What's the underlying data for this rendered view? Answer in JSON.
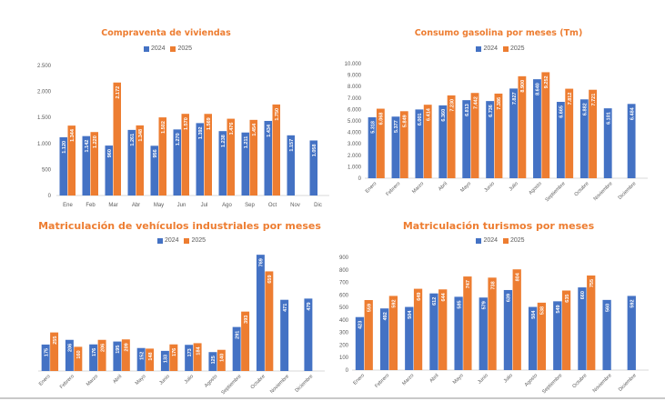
{
  "colors": {
    "series_2024": "#4472C4",
    "series_2025": "#ED7D31",
    "title": "#ED7D31",
    "axis_text": "#595959"
  },
  "chart_data": [
    {
      "id": "viviendas",
      "type": "bar",
      "title": "Compraventa de viviendas",
      "categories": [
        "Ene",
        "Feb",
        "Mar",
        "Abr",
        "May",
        "Jun",
        "Jul",
        "Ago",
        "Sep",
        "Oct",
        "Nov",
        "Dic"
      ],
      "series": [
        {
          "name": "2024",
          "values": [
            1120,
            1142,
            960,
            1261,
            956,
            1270,
            1392,
            1238,
            1211,
            1434,
            1157,
            1058
          ],
          "labels": [
            "1.120",
            "1.142",
            "960",
            "1.261",
            "956",
            "1.270",
            "1.392",
            "1.238",
            "1.211",
            "1.434",
            "1.157",
            "1.058"
          ]
        },
        {
          "name": "2025",
          "values": [
            1344,
            1220,
            2172,
            1348,
            1502,
            1570,
            1569,
            1476,
            1454,
            1750,
            null,
            null
          ],
          "labels": [
            "1.344",
            "1.220",
            "2.172",
            "1.348",
            "1.502",
            "1.570",
            "1.569",
            "1.476",
            "1.454",
            "1.750",
            "",
            ""
          ]
        }
      ],
      "ylim": [
        0,
        2500
      ],
      "yticks": [
        0,
        500,
        1000,
        1500,
        2000,
        2500
      ],
      "ytick_labels": [
        "0",
        "500",
        "1.000",
        "1.500",
        "2.000",
        "2.500"
      ],
      "xlabel": "",
      "ylabel": "",
      "legend": "top",
      "rotated_xlabels": false,
      "show_yaxis": true
    },
    {
      "id": "gasolina",
      "type": "bar",
      "title": "Consumo gasolina por meses (Tm)",
      "categories": [
        "Enero",
        "Febrero",
        "Marzo",
        "Abril",
        "Mayo",
        "Junio",
        "Julio",
        "Agosto",
        "Septiembre",
        "Octubre",
        "Noviembre",
        "Diciembre"
      ],
      "series": [
        {
          "name": "2024",
          "values": [
            5318,
            5377,
            6001,
            6360,
            6813,
            6736,
            7827,
            8640,
            6665,
            6882,
            6101,
            6484
          ],
          "labels": [
            "5.318",
            "5.377",
            "6.001",
            "6.360",
            "6.813",
            "6.736",
            "7.827",
            "8.640",
            "6.665",
            "6.882",
            "6.101",
            "6.484"
          ]
        },
        {
          "name": "2025",
          "values": [
            6068,
            5849,
            6414,
            7230,
            7442,
            7386,
            8900,
            9252,
            7812,
            7721,
            null,
            null
          ],
          "labels": [
            "6.068",
            "5.849",
            "6.414",
            "7.230",
            "7.442",
            "7.386",
            "8.900",
            "9.252",
            "7.812",
            "7.721",
            "",
            ""
          ]
        }
      ],
      "ylim": [
        0,
        10000
      ],
      "yticks": [
        0,
        1000,
        2000,
        3000,
        4000,
        5000,
        6000,
        7000,
        8000,
        9000,
        10000
      ],
      "ytick_labels": [
        "0",
        "1.000",
        "2.000",
        "3.000",
        "4.000",
        "5.000",
        "6.000",
        "7.000",
        "8.000",
        "9.000",
        "10.000"
      ],
      "xlabel": "",
      "ylabel": "",
      "legend": "top",
      "rotated_xlabels": true,
      "show_yaxis": true
    },
    {
      "id": "industriales",
      "type": "bar",
      "title": "Matriculación de vehículos industriales por meses",
      "categories": [
        "Enero",
        "Febrero",
        "Marzo",
        "Abril",
        "Mayo",
        "Junio",
        "Julio",
        "Agosto",
        "Septiembre",
        "Octubre",
        "Noviembre",
        "Diciembre"
      ],
      "series": [
        {
          "name": "2024",
          "values": [
            175,
            206,
            176,
            195,
            152,
            133,
            173,
            125,
            291,
            769,
            471,
            479
          ],
          "labels": [
            "175",
            "206",
            "176",
            "195",
            "152",
            "133",
            "173",
            "125",
            "291",
            "769",
            "471",
            "479"
          ]
        },
        {
          "name": "2025",
          "values": [
            255,
            160,
            206,
            209,
            148,
            176,
            184,
            140,
            393,
            659,
            null,
            null
          ],
          "labels": [
            "255",
            "160",
            "206",
            "209",
            "148",
            "176",
            "184",
            "140",
            "393",
            "659",
            "",
            ""
          ]
        }
      ],
      "ylim": [
        0,
        800
      ],
      "yticks": [],
      "ytick_labels": [],
      "xlabel": "",
      "ylabel": "",
      "legend": "top",
      "rotated_xlabels": true,
      "show_yaxis": false
    },
    {
      "id": "turismos",
      "type": "bar",
      "title": "Matriculación turismos por meses",
      "categories": [
        "Enero",
        "Febrero",
        "Marzo",
        "Abril",
        "Mayo",
        "Junio",
        "Julio",
        "Agosto",
        "Septiembre",
        "Octubre",
        "Noviembre",
        "Diciembre"
      ],
      "series": [
        {
          "name": "2024",
          "values": [
            423,
            492,
            504,
            612,
            585,
            579,
            639,
            504,
            549,
            660,
            560,
            592
          ],
          "labels": [
            "423",
            "492",
            "504",
            "612",
            "585",
            "579",
            "639",
            "504",
            "549",
            "660",
            "560",
            "592"
          ]
        },
        {
          "name": "2025",
          "values": [
            559,
            592,
            649,
            644,
            747,
            738,
            804,
            538,
            635,
            755,
            null,
            null
          ],
          "labels": [
            "559",
            "592",
            "649",
            "644",
            "747",
            "738",
            "804",
            "538",
            "635",
            "755",
            "",
            ""
          ]
        }
      ],
      "ylim": [
        0,
        900
      ],
      "yticks": [
        0,
        100,
        200,
        300,
        400,
        500,
        600,
        700,
        800,
        900
      ],
      "ytick_labels": [
        "0",
        "100",
        "200",
        "300",
        "400",
        "500",
        "600",
        "700",
        "800",
        "900"
      ],
      "xlabel": "",
      "ylabel": "",
      "legend": "top",
      "rotated_xlabels": true,
      "show_yaxis": true
    }
  ]
}
